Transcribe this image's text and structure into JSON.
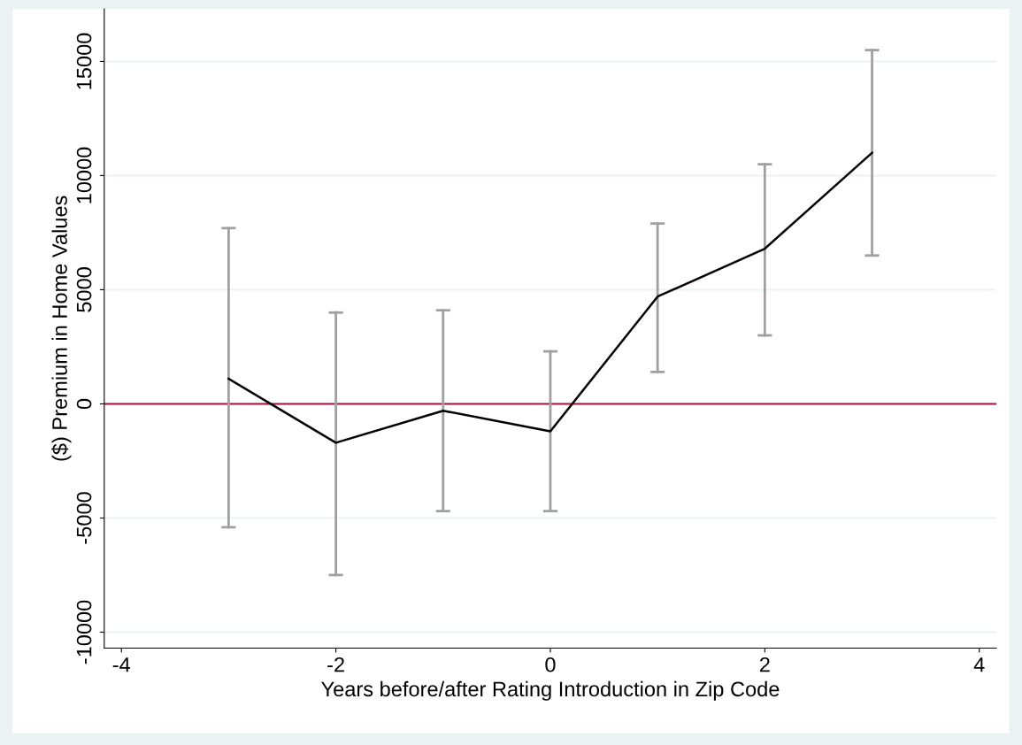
{
  "chart_data": {
    "type": "line",
    "xlabel": "Years before/after Rating Introduction in Zip Code",
    "ylabel": "($) Premium in Home Values",
    "x": [
      -3,
      -2,
      -1,
      0,
      1,
      2,
      3
    ],
    "series": [
      {
        "color": "#000000",
        "values": [
          1100,
          -1700,
          -300,
          -1200,
          4700,
          6800,
          11000
        ],
        "errors": [
          [
            -5400,
            7700
          ],
          [
            -7500,
            4000
          ],
          [
            -4700,
            4100
          ],
          [
            -4700,
            2300
          ],
          [
            1400,
            7900
          ],
          [
            3000,
            10500
          ],
          [
            6500,
            15500
          ]
        ]
      }
    ],
    "xlim": [
      -4.16,
      4.16
    ],
    "xticks": [
      -4,
      -2,
      0,
      2,
      4
    ],
    "ylim": [
      -10700,
      17300
    ],
    "yticks": [
      {
        "value": -10000,
        "label": "-10000"
      },
      {
        "value": -5000,
        "label": "-5000"
      },
      0,
      5000,
      10000,
      15000
    ],
    "ref_lines": [
      {
        "axis": "y",
        "value": 0,
        "color": "#a3123a"
      }
    ],
    "grid": "y",
    "marker": "none",
    "line_style": "solid"
  }
}
